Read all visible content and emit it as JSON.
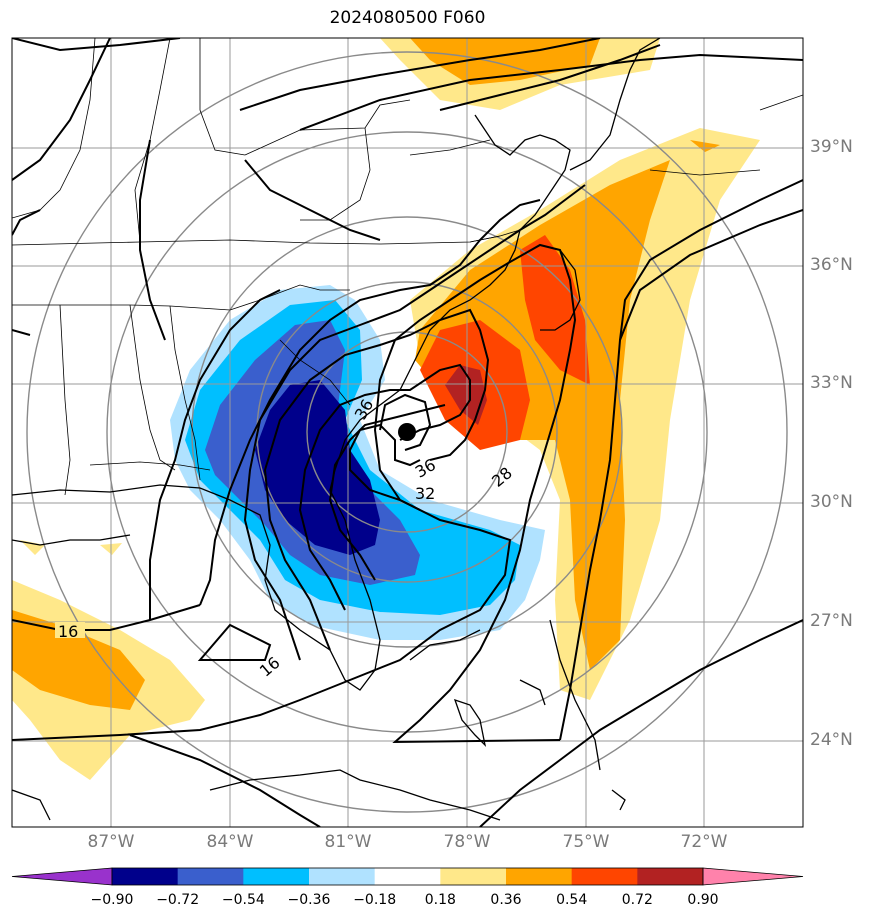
{
  "title": "2024080500 F060",
  "lat_labels": [
    "39°N",
    "36°N",
    "33°N",
    "30°N",
    "27°N",
    "24°N"
  ],
  "lon_labels": [
    "87°W",
    "84°W",
    "81°W",
    "78°W",
    "75°W",
    "72°W"
  ],
  "contour_labels": [
    "16",
    "16",
    "36",
    "32",
    "28",
    "36"
  ],
  "colorbar": {
    "ticks": [
      "−0.90",
      "−0.72",
      "−0.54",
      "−0.36",
      "−0.18",
      "0.18",
      "0.36",
      "0.54",
      "0.72",
      "0.90"
    ],
    "colors": [
      "#9932cc",
      "#00008b",
      "#3a5fcd",
      "#00bfff",
      "#b0e2ff",
      "#ffffff",
      "#ffe88a",
      "#ffa500",
      "#ff4500",
      "#b22222",
      "#ff82ab"
    ]
  },
  "storm_marker": "black-dot",
  "map": {
    "region": "US East Coast / western Atlantic",
    "lat_range": [
      22,
      41
    ],
    "lon_range": [
      -90,
      -70
    ]
  }
}
